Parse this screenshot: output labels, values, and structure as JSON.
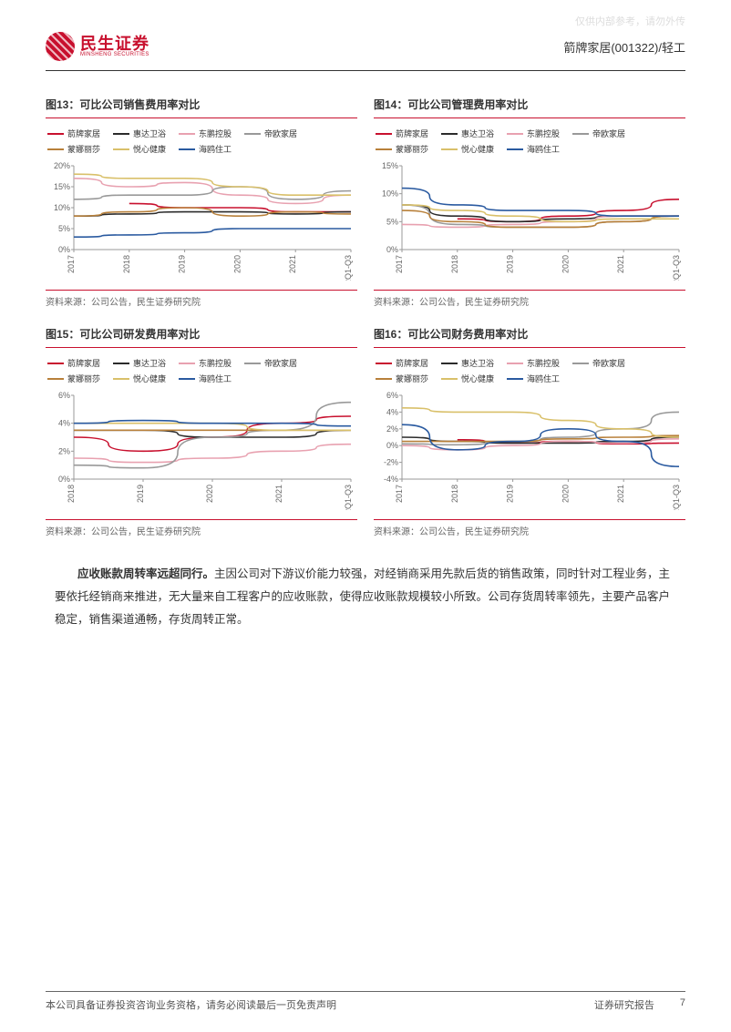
{
  "watermark": "仅供内部参考，请勿外传",
  "logo": {
    "cn": "民生证券",
    "en": "MINSHENG SECURITIES"
  },
  "header_right": "箭牌家居(001322)/轻工",
  "legend_series": [
    {
      "name": "箭牌家居",
      "color": "#c8102e"
    },
    {
      "name": "惠达卫浴",
      "color": "#2b2b2b"
    },
    {
      "name": "东鹏控股",
      "color": "#e8a1b0"
    },
    {
      "name": "帝欧家居",
      "color": "#999999"
    },
    {
      "name": "蒙娜丽莎",
      "color": "#b8803a"
    },
    {
      "name": "悦心健康",
      "color": "#d9c06a"
    },
    {
      "name": "海鸥住工",
      "color": "#2a5aa0"
    }
  ],
  "charts": [
    {
      "id": "c13",
      "title": "图13：可比公司销售费用率对比",
      "source": "资料来源：公司公告，民生证券研究院",
      "xcats": [
        "2017",
        "2018",
        "2019",
        "2020",
        "2021",
        "2022Q1-Q3"
      ],
      "ymin": 0,
      "ymax": 20,
      "ystep": 5,
      "ysuffix": "%",
      "series": [
        {
          "color": "#c8102e",
          "vals": [
            null,
            11,
            10,
            10,
            9,
            9
          ]
        },
        {
          "color": "#2b2b2b",
          "vals": [
            8,
            8.5,
            9,
            9,
            8.5,
            9
          ]
        },
        {
          "color": "#e8a1b0",
          "vals": [
            17,
            15,
            16,
            13,
            11,
            13
          ]
        },
        {
          "color": "#999999",
          "vals": [
            12,
            13,
            13,
            15,
            12,
            14
          ]
        },
        {
          "color": "#b8803a",
          "vals": [
            8,
            9,
            10,
            8,
            9,
            8.5
          ]
        },
        {
          "color": "#d9c06a",
          "vals": [
            18,
            17,
            17,
            15,
            13,
            13
          ]
        },
        {
          "color": "#2a5aa0",
          "vals": [
            3,
            3.5,
            4,
            5,
            5,
            5
          ]
        }
      ]
    },
    {
      "id": "c14",
      "title": "图14：可比公司管理费用率对比",
      "source": "资料来源：公司公告，民生证券研究院",
      "xcats": [
        "2017",
        "2018",
        "2019",
        "2020",
        "2021",
        "2022Q1-Q3"
      ],
      "ymin": 0,
      "ymax": 15,
      "ystep": 5,
      "ysuffix": "%",
      "series": [
        {
          "color": "#c8102e",
          "vals": [
            null,
            5.5,
            5,
            6,
            7,
            9
          ]
        },
        {
          "color": "#2b2b2b",
          "vals": [
            8,
            6,
            5,
            5.5,
            6,
            6
          ]
        },
        {
          "color": "#e8a1b0",
          "vals": [
            4.5,
            4,
            4.5,
            5,
            6,
            6
          ]
        },
        {
          "color": "#999999",
          "vals": [
            8,
            4.5,
            4,
            4,
            5,
            6
          ]
        },
        {
          "color": "#b8803a",
          "vals": [
            7,
            5,
            4,
            4,
            5,
            6
          ]
        },
        {
          "color": "#d9c06a",
          "vals": [
            8,
            7,
            6,
            5,
            5.5,
            5.5
          ]
        },
        {
          "color": "#2a5aa0",
          "vals": [
            11,
            8,
            7,
            7,
            6,
            6
          ]
        }
      ]
    },
    {
      "id": "c15",
      "title": "图15：可比公司研发费用率对比",
      "source": "资料来源：公司公告，民生证券研究院",
      "xcats": [
        "2018",
        "2019",
        "2020",
        "2021",
        "2022Q1-Q3"
      ],
      "ymin": 0,
      "ymax": 6,
      "ystep": 2,
      "ysuffix": "%",
      "series": [
        {
          "color": "#c8102e",
          "vals": [
            3,
            2,
            3,
            4,
            4.5
          ]
        },
        {
          "color": "#2b2b2b",
          "vals": [
            3.5,
            3.5,
            3,
            3,
            3.5
          ]
        },
        {
          "color": "#e8a1b0",
          "vals": [
            1.5,
            1.2,
            1.5,
            2,
            2.5
          ]
        },
        {
          "color": "#999999",
          "vals": [
            1,
            0.8,
            3,
            3.5,
            5.5
          ]
        },
        {
          "color": "#b8803a",
          "vals": [
            3.5,
            3.5,
            3.5,
            3.5,
            3.5
          ]
        },
        {
          "color": "#d9c06a",
          "vals": [
            4,
            4,
            4,
            3.5,
            3.5
          ]
        },
        {
          "color": "#2a5aa0",
          "vals": [
            4,
            4.2,
            4,
            4,
            3.8
          ]
        }
      ]
    },
    {
      "id": "c16",
      "title": "图16：可比公司财务费用率对比",
      "source": "资料来源：公司公告，民生证券研究院",
      "xcats": [
        "2017",
        "2018",
        "2019",
        "2020",
        "2021",
        "2022Q1-Q3"
      ],
      "ymin": -4,
      "ymax": 6,
      "ystep": 2,
      "ysuffix": "%",
      "series": [
        {
          "color": "#c8102e",
          "vals": [
            null,
            0.7,
            0.3,
            0.5,
            0.2,
            0.3
          ]
        },
        {
          "color": "#2b2b2b",
          "vals": [
            1,
            0.5,
            0.3,
            0.3,
            0.5,
            1
          ]
        },
        {
          "color": "#e8a1b0",
          "vals": [
            0,
            -0.5,
            0,
            0.5,
            0.3,
            0.8
          ]
        },
        {
          "color": "#999999",
          "vals": [
            0.2,
            0.1,
            0.5,
            1,
            2,
            4
          ]
        },
        {
          "color": "#b8803a",
          "vals": [
            0.5,
            0.5,
            0.5,
            0.8,
            1,
            1.2
          ]
        },
        {
          "color": "#d9c06a",
          "vals": [
            4.5,
            4,
            4,
            3,
            2,
            1
          ]
        },
        {
          "color": "#2a5aa0",
          "vals": [
            2.5,
            -0.5,
            0.5,
            2,
            0.5,
            -2.5
          ]
        }
      ]
    }
  ],
  "body_bold": "应收账款周转率远超同行。",
  "body_rest": "主因公司对下游议价能力较强，对经销商采用先款后货的销售政策，同时针对工程业务，主要依托经销商来推进，无大量来自工程客户的应收账款，使得应收账款规模较小所致。公司存货周转率领先，主要产品客户稳定，销售渠道通畅，存货周转正常。",
  "footer_left": "本公司具备证券投资咨询业务资格，请务必阅读最后一页免责声明",
  "footer_right_label": "证券研究报告",
  "footer_page": "7"
}
